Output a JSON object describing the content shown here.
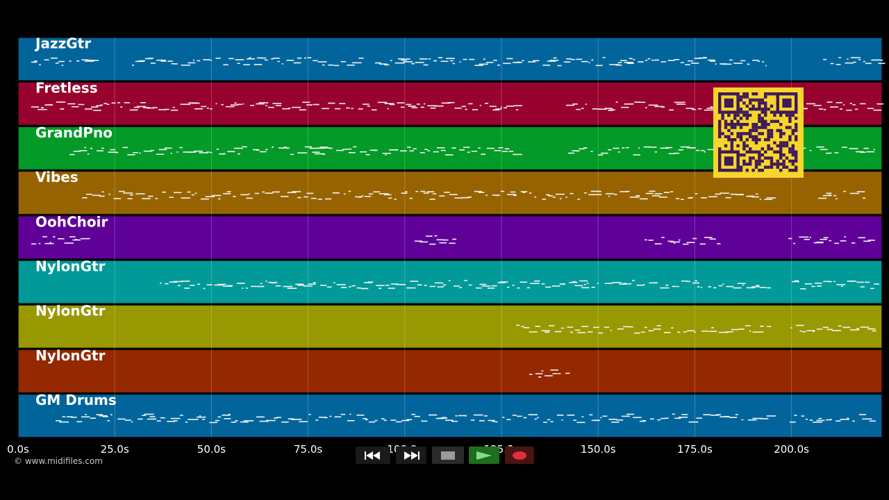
{
  "tracks": [
    {
      "name": "JazzGtr",
      "color": "#01659c"
    },
    {
      "name": "Fretless",
      "color": "#98022f"
    },
    {
      "name": "GrandPno",
      "color": "#039a27"
    },
    {
      "name": "Vibes",
      "color": "#976301"
    },
    {
      "name": "OohChoir",
      "color": "#5f0199"
    },
    {
      "name": "NylonGtr",
      "color": "#029999"
    },
    {
      "name": "NylonGtr",
      "color": "#989902"
    },
    {
      "name": "NylonGtr",
      "color": "#942801"
    },
    {
      "name": "GM Drums",
      "color": "#01659c"
    }
  ],
  "timeline": {
    "ticks": [
      "0.0s",
      "25.0s",
      "50.0s",
      "75.0s",
      "100.0s",
      "125.0s",
      "150.0s",
      "175.0s",
      "200.0s"
    ]
  },
  "transport": {
    "rewind_icon": "rewind-icon",
    "forward_icon": "fast-forward-icon",
    "stop_icon": "stop-icon",
    "play_icon": "play-icon",
    "record_icon": "record-icon"
  },
  "copyright": "© www.midifiles.com",
  "colors": {
    "background": "#000000",
    "qr_frame": "#f7d52a",
    "qr_dark": "#3d1a5a"
  }
}
